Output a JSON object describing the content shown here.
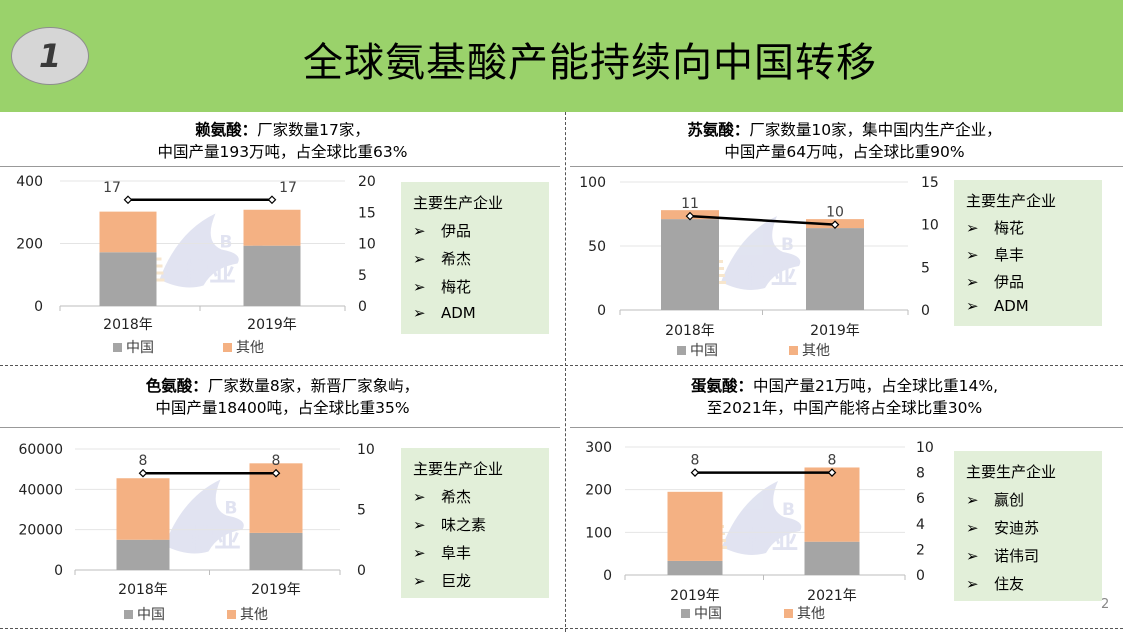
{
  "header": {
    "slide_number": "1",
    "title": "全球氨基酸产能持续向中国转移"
  },
  "page_number": "2",
  "watermark": {
    "latin": "B O",
    "chinese": "博亚"
  },
  "panels": [
    {
      "title_bold": "赖氨酸：",
      "title_line1": "厂家数量17家，",
      "title_line2": "中国产量193万吨，占全球比重63%",
      "company_box": {
        "title": "主要生产企业",
        "items": [
          "伊品",
          "希杰",
          "梅花",
          "ADM"
        ]
      }
    },
    {
      "title_bold": "苏氨酸：",
      "title_line1": "厂家数量10家，集中国内生产企业，",
      "title_line2": "中国产量64万吨，占全球比重90%",
      "company_box": {
        "title": "主要生产企业",
        "items": [
          "梅花",
          "阜丰",
          "伊品",
          "ADM"
        ]
      }
    },
    {
      "title_bold": "色氨酸：",
      "title_line1": "厂家数量8家，新晋厂家象屿，",
      "title_line2": "中国产量18400吨，占全球比重35%",
      "company_box": {
        "title": "主要生产企业",
        "items": [
          "希杰",
          "味之素",
          "阜丰",
          "巨龙"
        ]
      }
    },
    {
      "title_bold": "蛋氨酸：",
      "title_line1": "中国产量21万吨，占全球比重14%,",
      "title_line2": "至2021年，中国产能将占全球比重30%",
      "company_box": {
        "title": "主要生产企业",
        "items": [
          "赢创",
          "安迪苏",
          "诺伟司",
          "住友"
        ]
      }
    }
  ],
  "colors": {
    "header_green": "#9ad26b",
    "china": "#a5a5a5",
    "other": "#f4b183",
    "line": "#000000",
    "box": "#e2efd9"
  },
  "chart_data": [
    {
      "type": "bar",
      "stacked": true,
      "categories": [
        "2018年",
        "2019年"
      ],
      "series": [
        {
          "name": "中国",
          "values": [
            172,
            193
          ]
        },
        {
          "name": "其他",
          "values": [
            130,
            115
          ]
        },
        {
          "name": "",
          "type": "line",
          "axis": "right",
          "values": [
            17,
            17
          ]
        }
      ],
      "data_labels": [
        "17",
        "17"
      ],
      "y_left_ticks": [
        0,
        200,
        400
      ],
      "ylim_left": [
        0,
        400
      ],
      "y_right_ticks": [
        0,
        5,
        10,
        15,
        20
      ],
      "ylim_right": [
        0,
        20
      ],
      "legend": "bottom"
    },
    {
      "type": "bar",
      "stacked": true,
      "categories": [
        "2018年",
        "2019年"
      ],
      "series": [
        {
          "name": "中国",
          "values": [
            71,
            64
          ]
        },
        {
          "name": "其他",
          "values": [
            7,
            7
          ]
        },
        {
          "name": "",
          "type": "line",
          "axis": "right",
          "values": [
            11,
            10
          ]
        }
      ],
      "data_labels": [
        "11",
        "10"
      ],
      "y_left_ticks": [
        0,
        50,
        100
      ],
      "ylim_left": [
        0,
        100
      ],
      "y_right_ticks": [
        0,
        5,
        10,
        15
      ],
      "ylim_right": [
        0,
        15
      ],
      "legend": "bottom"
    },
    {
      "type": "bar",
      "stacked": true,
      "categories": [
        "2018年",
        "2019年"
      ],
      "series": [
        {
          "name": "中国",
          "values": [
            15000,
            18400
          ]
        },
        {
          "name": "其他",
          "values": [
            30500,
            34500
          ]
        },
        {
          "name": "",
          "type": "line",
          "axis": "right",
          "values": [
            8,
            8
          ]
        }
      ],
      "data_labels": [
        "8",
        "8"
      ],
      "y_left_ticks": [
        0,
        20000,
        40000,
        60000
      ],
      "ylim_left": [
        0,
        60000
      ],
      "y_right_ticks": [
        0,
        5,
        10
      ],
      "ylim_right": [
        0,
        10
      ],
      "legend": "bottom"
    },
    {
      "type": "bar",
      "stacked": true,
      "categories": [
        "2019年",
        "2021年"
      ],
      "series": [
        {
          "name": "中国",
          "values": [
            33,
            78
          ]
        },
        {
          "name": "其他",
          "values": [
            162,
            174
          ]
        },
        {
          "name": "",
          "type": "line",
          "axis": "right",
          "values": [
            8,
            8
          ]
        }
      ],
      "data_labels": [
        "8",
        "8"
      ],
      "y_left_ticks": [
        0,
        100,
        200,
        300
      ],
      "ylim_left": [
        0,
        300
      ],
      "y_right_ticks": [
        0,
        2,
        4,
        6,
        8,
        10
      ],
      "ylim_right": [
        0,
        10
      ],
      "legend": "bottom"
    }
  ]
}
